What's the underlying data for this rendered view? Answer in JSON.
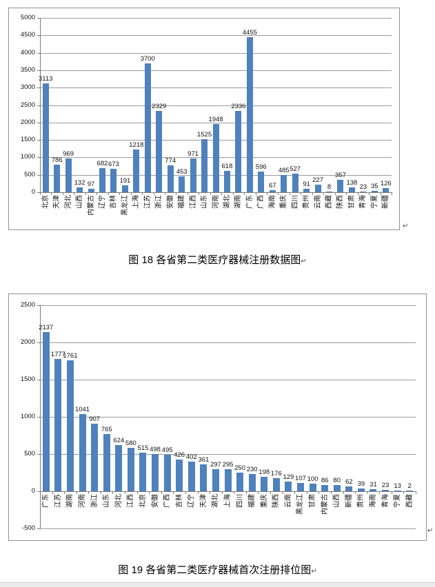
{
  "marks": {
    "return_mark": "↵"
  },
  "captions": {
    "fig18": "图 18 各省第二类医疗器械注册数据图",
    "fig19": "图 19 各省第二类医疗器械首次注册排位图"
  },
  "colors": {
    "bar": "#4F81BD",
    "gridline": "#9a9a9a",
    "axis": "#7a7a7a",
    "chart_border": "#8f8f8f",
    "text": "#000000",
    "return_mark": "#4a4a4a",
    "page_edge": "#ececec"
  },
  "chart_data": [
    {
      "type": "bar",
      "title": "",
      "xlabel": "",
      "ylabel": "",
      "legend": "none",
      "grid": true,
      "data_labels": true,
      "ylim": [
        0,
        5000
      ],
      "ystep": 500,
      "yticks": [
        0,
        500,
        1000,
        1500,
        2000,
        2500,
        3000,
        3500,
        4000,
        4500,
        5000
      ],
      "categories": [
        "北京",
        "天津",
        "河北",
        "山西",
        "内蒙古",
        "辽宁",
        "吉林",
        "黑龙江",
        "上海",
        "江苏",
        "浙江",
        "安徽",
        "福建",
        "江西",
        "山东",
        "河南",
        "湖北",
        "湖南",
        "广东",
        "广西",
        "海南",
        "重庆",
        "四川",
        "贵州",
        "云南",
        "西藏",
        "陕西",
        "甘肃",
        "青海",
        "宁夏",
        "新疆"
      ],
      "values": [
        3113,
        786,
        969,
        132,
        97,
        682,
        673,
        191,
        1218,
        3700,
        2329,
        774,
        453,
        971,
        1525,
        1948,
        618,
        2336,
        4455,
        596,
        67,
        485,
        527,
        91,
        227,
        8,
        357,
        138,
        23,
        35,
        126
      ]
    },
    {
      "type": "bar",
      "title": "",
      "xlabel": "",
      "ylabel": "",
      "legend": "none",
      "grid": true,
      "data_labels": true,
      "ylim": [
        -500,
        2500
      ],
      "ystep": 500,
      "yticks": [
        -500,
        0,
        500,
        1000,
        1500,
        2000,
        2500
      ],
      "categories": [
        "广东",
        "江苏",
        "湖南",
        "河南",
        "浙江",
        "山东",
        "河北",
        "江西",
        "北京",
        "安徽",
        "广西",
        "吉林",
        "辽宁",
        "天津",
        "湖北",
        "上海",
        "四川",
        "福建",
        "重庆",
        "陕西",
        "云南",
        "黑龙江",
        "甘肃",
        "内蒙古",
        "山西",
        "新疆",
        "贵州",
        "海南",
        "青海",
        "宁夏",
        "西藏"
      ],
      "values": [
        2137,
        1777,
        1761,
        1041,
        907,
        765,
        624,
        580,
        515,
        498,
        495,
        426,
        402,
        361,
        297,
        295,
        250,
        230,
        198,
        176,
        129,
        107,
        100,
        86,
        80,
        62,
        39,
        31,
        23,
        13,
        2
      ]
    }
  ]
}
